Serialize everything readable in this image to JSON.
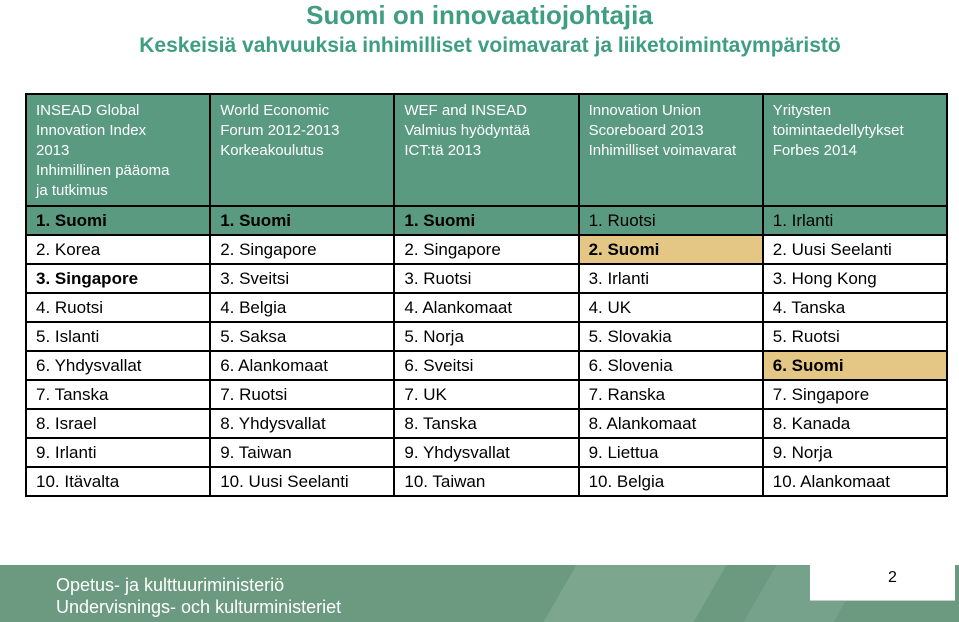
{
  "title": "Suomi on innovaatiojohtajia",
  "subtitle": "Keskeisiä vahvuuksia inhimilliset voimavarat ja liiketoimintaympäristö",
  "columns": [
    "INSEAD Global\nInnovation Index\n2013\nInhimillinen pääoma\nja tutkimus",
    "World Economic\nForum 2012-2013\nKorkeakoulutus",
    "WEF and INSEAD\nValmius hyödyntää\nICT:tä 2013",
    "Innovation Union\nScoreboard 2013\nInhimilliset voimavarat",
    "Yritysten\ntoimintaedellytykset\nForbes 2014"
  ],
  "rows": [
    [
      "1. Suomi",
      "1. Suomi",
      "1. Suomi",
      "1. Ruotsi",
      "1. Irlanti"
    ],
    [
      "2. Korea",
      "2. Singapore",
      "2. Singapore",
      "2. Suomi",
      "2. Uusi Seelanti"
    ],
    [
      "3. Singapore",
      "3. Sveitsi",
      "3. Ruotsi",
      "3. Irlanti",
      "3. Hong Kong"
    ],
    [
      "4. Ruotsi",
      "4. Belgia",
      "4. Alankomaat",
      "4. UK",
      "4. Tanska"
    ],
    [
      "5. Islanti",
      "5. Saksa",
      "5. Norja",
      "5. Slovakia",
      "5. Ruotsi"
    ],
    [
      "6. Yhdysvallat",
      "6. Alankomaat",
      "6. Sveitsi",
      "6. Slovenia",
      "6. Suomi"
    ],
    [
      "7. Tanska",
      "7. Ruotsi",
      "7. UK",
      "7. Ranska",
      "7. Singapore"
    ],
    [
      "8. Israel",
      "8. Yhdysvallat",
      "8. Tanska",
      "8. Alankomaat",
      "8. Kanada"
    ],
    [
      "9. Irlanti",
      "9. Taiwan",
      "9. Yhdysvallat",
      "9. Liettua",
      "9. Norja"
    ],
    [
      "10. Itävalta",
      "10. Uusi Seelanti",
      "10. Taiwan",
      "10. Belgia",
      "10. Alankomaat"
    ]
  ],
  "footer": {
    "ministry_fi": "Opetus- ja kulttuuriministeriö",
    "ministry_sv": "Undervisnings- och kulturministeriet",
    "page_number": "2"
  },
  "colors": {
    "title": "#3f9e80",
    "header_bg": "#5a9a80",
    "highlight": "#e4c785",
    "footer_bg": "#6b9a80"
  }
}
